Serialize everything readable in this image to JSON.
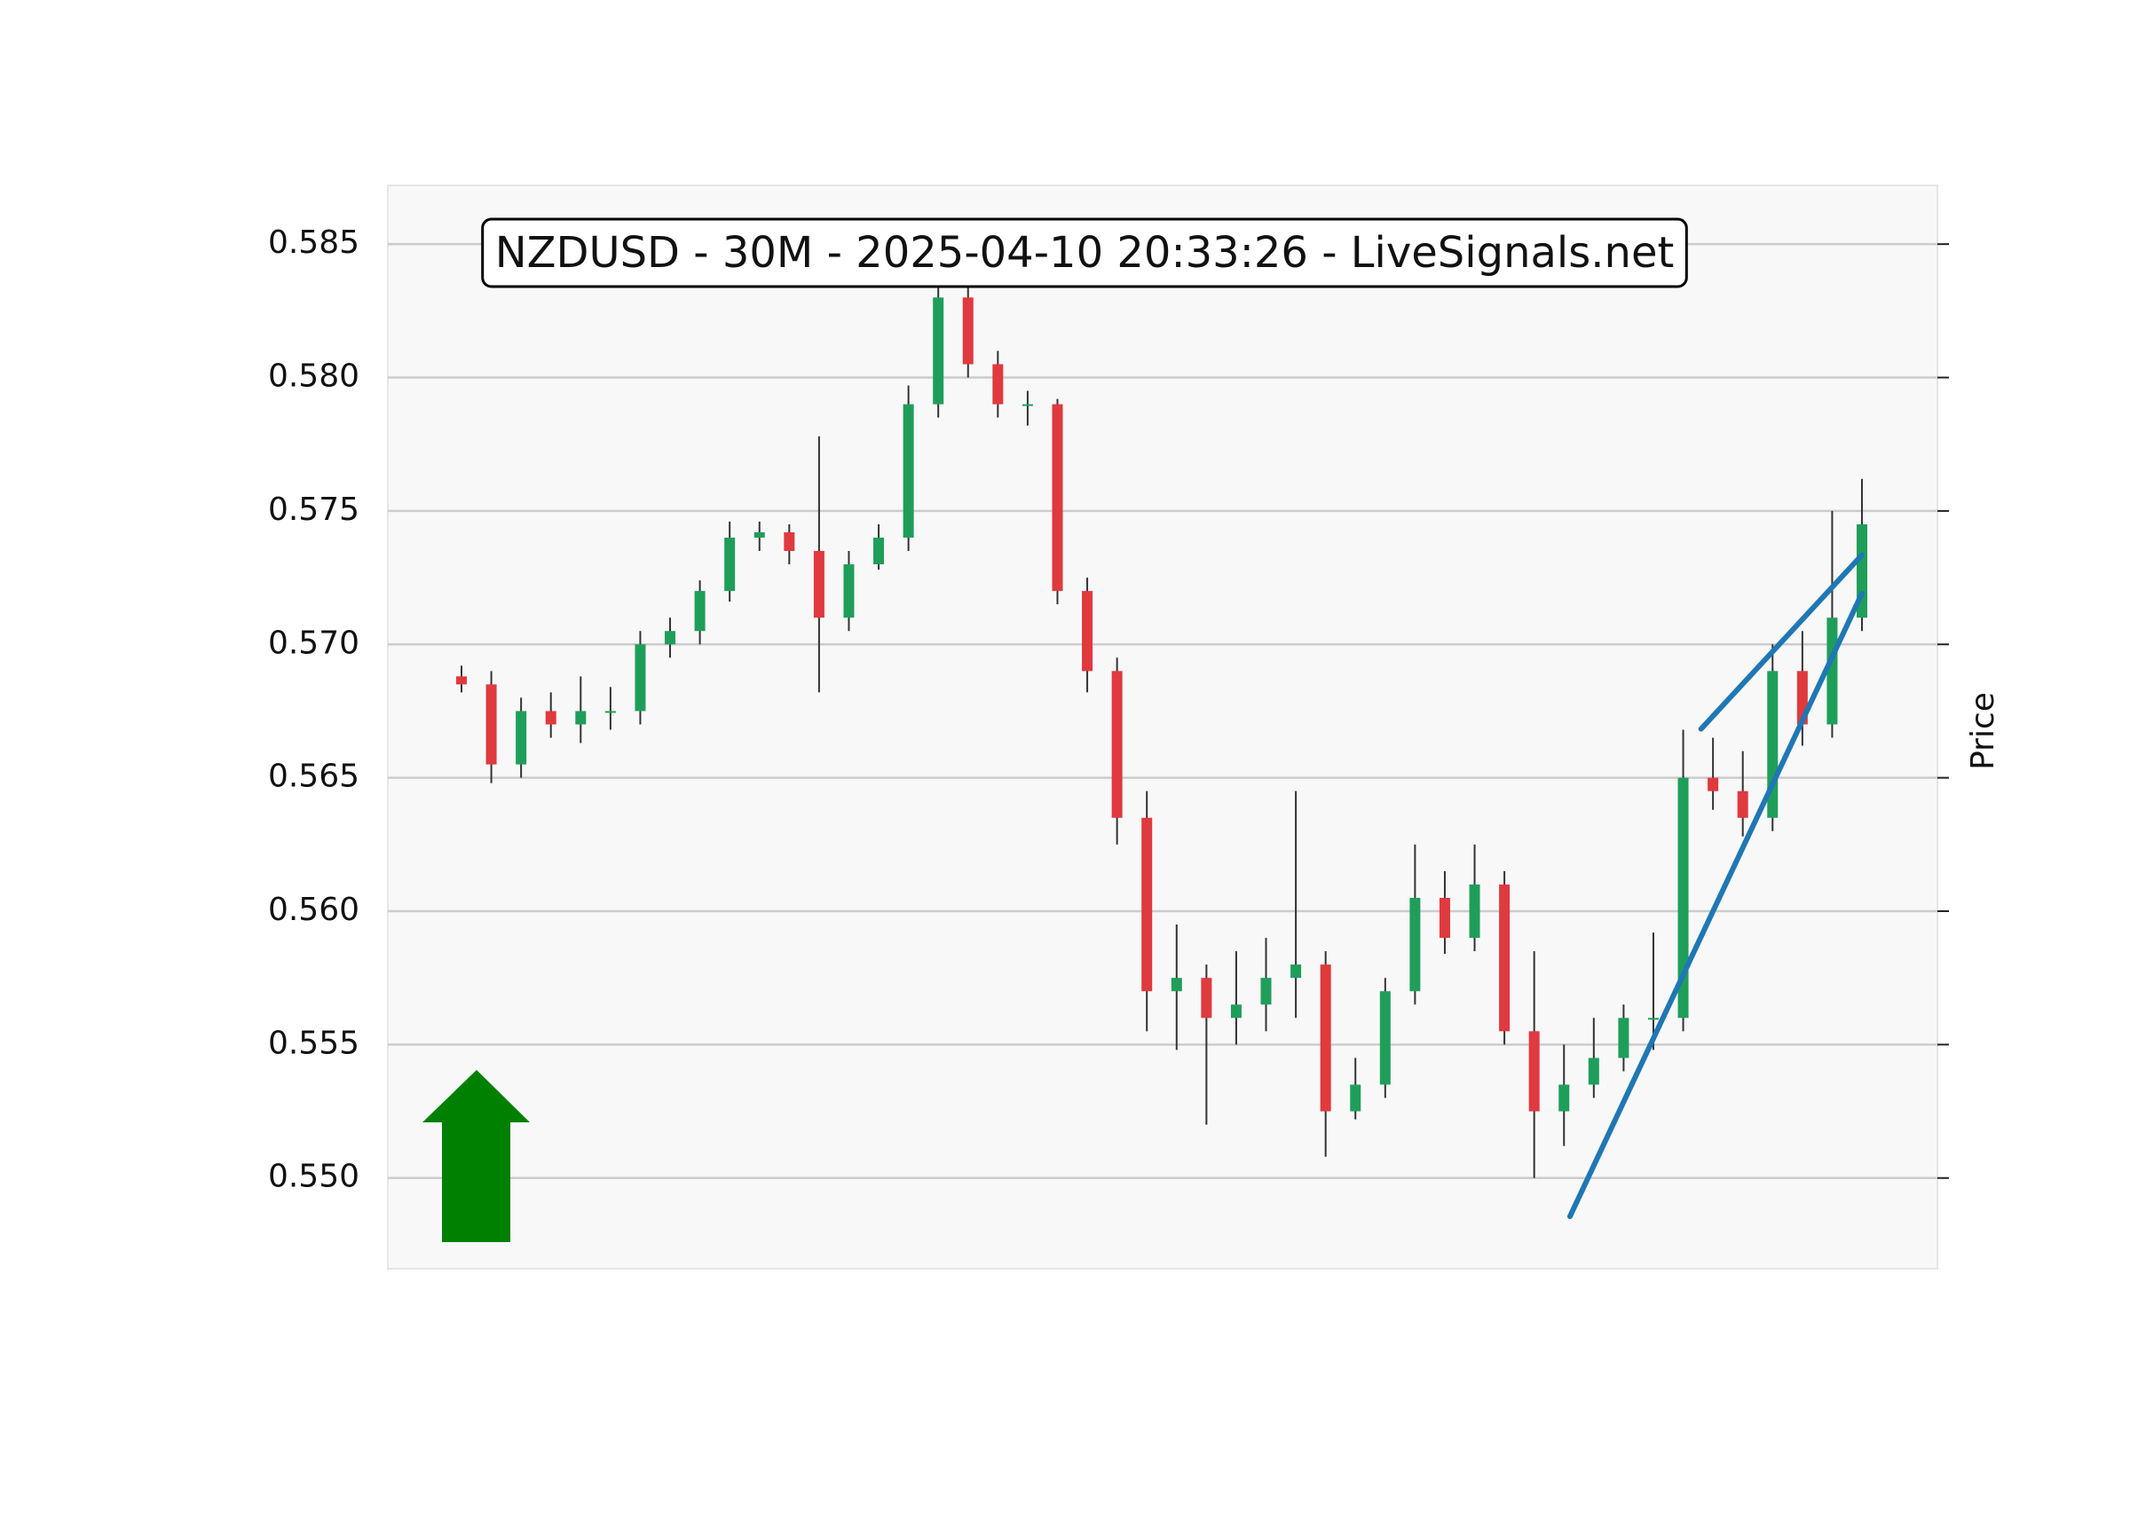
{
  "chart_data": {
    "type": "candlestick",
    "title": "NZDUSD - 30M - 2025-04-10 20:33:26 - LiveSignals.net",
    "y_label": "Price",
    "ylim": [
      0.5466,
      0.5872
    ],
    "yticks": [
      {
        "value": 0.55,
        "label": "0.550"
      },
      0.555,
      {
        "value": 0.56,
        "label": "0.560"
      },
      0.565,
      {
        "value": 0.57,
        "label": "0.570"
      },
      0.575,
      {
        "value": 0.58,
        "label": "0.580"
      },
      0.585
    ],
    "grid": true,
    "up_color": "#1f9e5a",
    "down_color": "#e0393e",
    "wick_color": "#333333",
    "open": [
      0.5688,
      0.5685,
      0.5655,
      0.5675,
      0.567,
      0.5675,
      0.5675,
      0.57,
      0.5705,
      0.572,
      0.574,
      0.5742,
      0.5735,
      0.571,
      0.573,
      0.574,
      0.579,
      0.583,
      0.5805,
      0.579,
      0.579,
      0.572,
      0.569,
      0.5635,
      0.557,
      0.5575,
      0.556,
      0.5565,
      0.5575,
      0.558,
      0.5525,
      0.5535,
      0.557,
      0.5605,
      0.559,
      0.561,
      0.5555,
      0.5525,
      0.5535,
      0.5545,
      0.556,
      0.556,
      0.565,
      0.5645,
      0.5635,
      0.569,
      0.567,
      0.571
    ],
    "high": [
      0.5692,
      0.569,
      0.568,
      0.5682,
      0.5688,
      0.5684,
      0.5705,
      0.571,
      0.5724,
      0.5746,
      0.5746,
      0.5745,
      0.5778,
      0.5735,
      0.5745,
      0.5797,
      0.5836,
      0.5834,
      0.581,
      0.5795,
      0.5792,
      0.5725,
      0.5695,
      0.5645,
      0.5595,
      0.558,
      0.5585,
      0.559,
      0.5645,
      0.5585,
      0.5545,
      0.5575,
      0.5625,
      0.5615,
      0.5625,
      0.5615,
      0.5585,
      0.555,
      0.556,
      0.5565,
      0.5592,
      0.5668,
      0.5665,
      0.566,
      0.57,
      0.5705,
      0.575,
      0.5762
    ],
    "low": [
      0.5682,
      0.5648,
      0.565,
      0.5665,
      0.5663,
      0.5668,
      0.567,
      0.5695,
      0.57,
      0.5716,
      0.5735,
      0.573,
      0.5682,
      0.5705,
      0.5728,
      0.5735,
      0.5785,
      0.58,
      0.5785,
      0.5782,
      0.5715,
      0.5682,
      0.5625,
      0.5555,
      0.5548,
      0.552,
      0.555,
      0.5555,
      0.556,
      0.5508,
      0.5522,
      0.553,
      0.5565,
      0.5584,
      0.5585,
      0.555,
      0.55,
      0.5512,
      0.553,
      0.554,
      0.5548,
      0.5555,
      0.5638,
      0.5628,
      0.563,
      0.5662,
      0.5665,
      0.5705
    ],
    "close": [
      0.5685,
      0.5655,
      0.5675,
      0.567,
      0.5675,
      0.5675,
      0.57,
      0.5705,
      0.572,
      0.574,
      0.5742,
      0.5735,
      0.571,
      0.573,
      0.574,
      0.579,
      0.583,
      0.5805,
      0.579,
      0.579,
      0.572,
      0.569,
      0.5635,
      0.557,
      0.5575,
      0.556,
      0.5565,
      0.5575,
      0.558,
      0.5525,
      0.5535,
      0.557,
      0.5605,
      0.559,
      0.561,
      0.5555,
      0.5525,
      0.5535,
      0.5545,
      0.556,
      0.556,
      0.565,
      0.5645,
      0.5635,
      0.569,
      0.567,
      0.571,
      0.5745
    ],
    "trendlines": [
      {
        "x": [
          37.2,
          47
        ],
        "y": [
          0.54856,
          0.57191
        ],
        "color": "#1f77b4"
      },
      {
        "x": [
          41.6,
          47
        ],
        "y": [
          0.56683,
          0.57335
        ],
        "color": "#1f77b4"
      }
    ]
  }
}
